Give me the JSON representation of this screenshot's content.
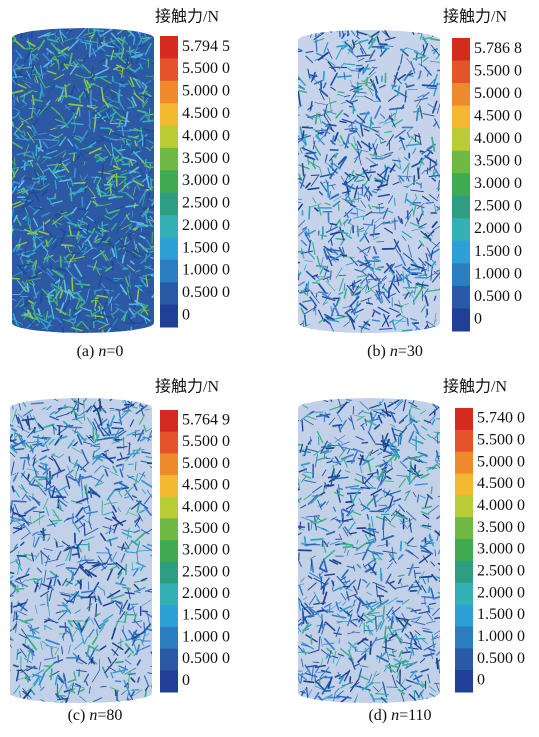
{
  "panels": [
    {
      "legend_title": "接触力/N",
      "legend_labels": [
        "5.794 5",
        "5.500 0",
        "5.000 0",
        "4.500 0",
        "4.000 0",
        "3.500 0",
        "3.000 0",
        "2.500 0",
        "2.000 0",
        "1.500 0",
        "1.000 0",
        "0.500 0",
        "0"
      ],
      "caption": {
        "label": "(a)",
        "variable": "n",
        "value": "=0"
      }
    },
    {
      "legend_title": "接触力/N",
      "legend_labels": [
        "5.786 8",
        "5.500 0",
        "5.000 0",
        "4.500 0",
        "4.000 0",
        "3.500 0",
        "3.000 0",
        "2.500 0",
        "2.000 0",
        "1.500 0",
        "1.000 0",
        "0.500 0",
        "0"
      ],
      "caption": {
        "label": "(b)",
        "variable": "n",
        "value": "=30"
      }
    },
    {
      "legend_title": "接触力/N",
      "legend_labels": [
        "5.764 9",
        "5.500 0",
        "5.000 0",
        "4.500 0",
        "4.000 0",
        "3.500 0",
        "3.000 0",
        "2.500 0",
        "2.000 0",
        "1.500 0",
        "1.000 0",
        "0.500 0",
        "0"
      ],
      "caption": {
        "label": "(c)",
        "variable": "n",
        "value": "=80"
      }
    },
    {
      "legend_title": "接触力/N",
      "legend_labels": [
        "5.740 0",
        "5.500 0",
        "5.000 0",
        "4.500 0",
        "4.000 0",
        "3.500 0",
        "3.000 0",
        "2.500 0",
        "2.000 0",
        "1.500 0",
        "1.000 0",
        "0.500 0",
        "0"
      ],
      "caption": {
        "label": "(d)",
        "variable": "n",
        "value": "=110"
      }
    }
  ],
  "colorbar_colors": [
    "#d42a20",
    "#e4532a",
    "#ef8a2c",
    "#f3b82f",
    "#b9cb35",
    "#6fb844",
    "#3faa4f",
    "#2e9e83",
    "#33b1b4",
    "#2ea0d8",
    "#2b7dc2",
    "#2a5aa6",
    "#213f96"
  ]
}
